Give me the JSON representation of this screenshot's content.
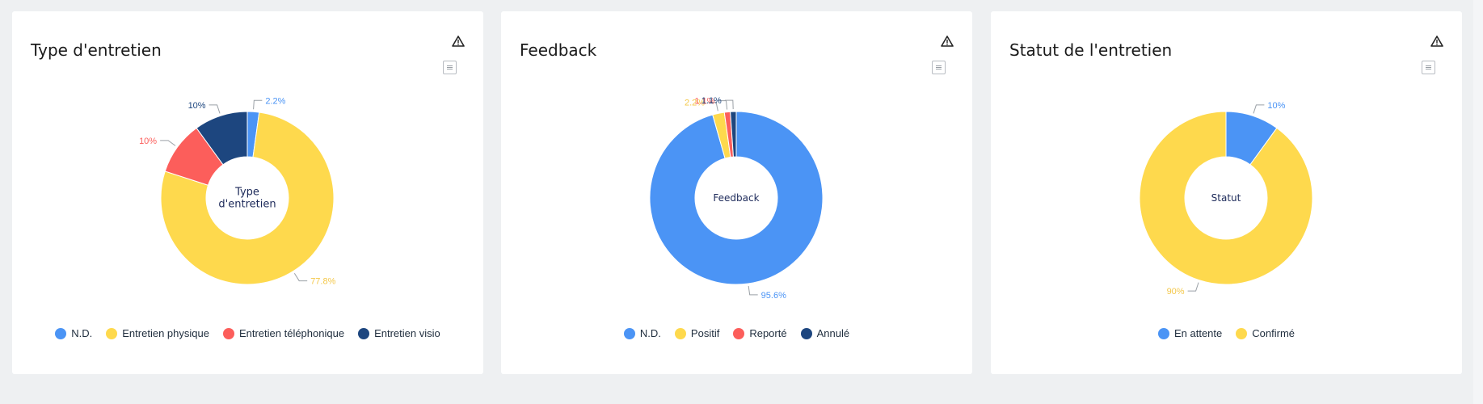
{
  "cards": [
    {
      "title": "Type d'entretien",
      "chart_data": {
        "type": "pie",
        "center_label": [
          "Type",
          "d'entretien"
        ],
        "series": [
          {
            "name": "N.D.",
            "value": 2.2,
            "label": "2.2%",
            "color": "#4b94f5"
          },
          {
            "name": "Entretien physique",
            "value": 77.8,
            "label": "77.8%",
            "color": "#fed94d"
          },
          {
            "name": "Entretien téléphonique",
            "value": 10,
            "label": "10%",
            "color": "#fc5e5b"
          },
          {
            "name": "Entretien visio",
            "value": 10,
            "label": "10%",
            "color": "#1d467f"
          }
        ]
      }
    },
    {
      "title": "Feedback",
      "chart_data": {
        "type": "pie",
        "center_label": [
          "Feedback"
        ],
        "series": [
          {
            "name": "N.D.",
            "value": 95.6,
            "label": "95.6%",
            "color": "#4b94f5"
          },
          {
            "name": "Positif",
            "value": 2.2,
            "label": "2.2%",
            "color": "#fed94d"
          },
          {
            "name": "Reporté",
            "value": 1.1,
            "label": "1.1%",
            "color": "#fc5e5b"
          },
          {
            "name": "Annulé",
            "value": 1.1,
            "label": "1.1%",
            "color": "#1d467f"
          }
        ]
      }
    },
    {
      "title": "Statut de l'entretien",
      "chart_data": {
        "type": "pie",
        "center_label": [
          "Statut"
        ],
        "series": [
          {
            "name": "En attente",
            "value": 10,
            "label": "10%",
            "color": "#4b94f5"
          },
          {
            "name": "Confirmé",
            "value": 90,
            "label": "90%",
            "color": "#fed94d"
          }
        ]
      }
    }
  ]
}
